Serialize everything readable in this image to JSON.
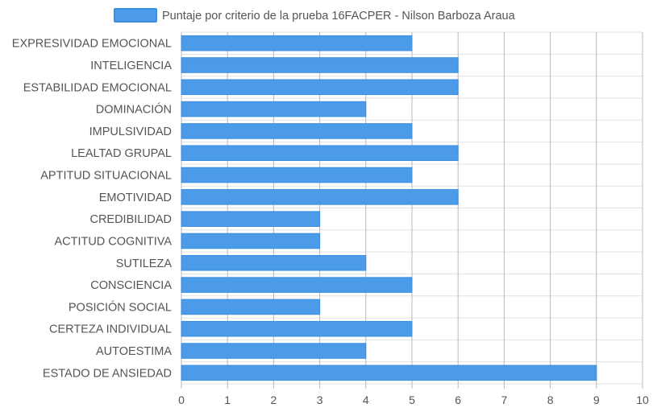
{
  "chart_data": {
    "type": "bar",
    "orientation": "horizontal",
    "legend_position": "top",
    "grid": true,
    "xlim": [
      0,
      10
    ],
    "x_ticks": [
      "0",
      "1",
      "2",
      "3",
      "4",
      "5",
      "6",
      "7",
      "8",
      "9",
      "10"
    ],
    "categories": [
      "EXPRESIVIDAD EMOCIONAL",
      "INTELIGENCIA",
      "ESTABILIDAD EMOCIONAL",
      "DOMINACIÓN",
      "IMPULSIVIDAD",
      "LEALTAD GRUPAL",
      "APTITUD SITUACIONAL",
      "EMOTIVIDAD",
      "CREDIBILIDAD",
      "ACTITUD COGNITIVA",
      "SUTILEZA",
      "CONSCIENCIA",
      "POSICIÓN SOCIAL",
      "CERTEZA INDIVIDUAL",
      "AUTOESTIMA",
      "ESTADO DE ANSIEDAD"
    ],
    "series": [
      {
        "name": "Puntaje por criterio de la prueba 16FACPER - Nilson Barboza Araua",
        "values": [
          5,
          6,
          6,
          4,
          5,
          6,
          5,
          6,
          3,
          3,
          4,
          5,
          3,
          5,
          4,
          9
        ]
      }
    ],
    "colors": {
      "bar_fill": "#4b9be8",
      "bar_border": "#3b8ee0",
      "grid_major": "#b8b8b8",
      "grid_minor": "#e2e2e2",
      "text": "#555555"
    }
  }
}
